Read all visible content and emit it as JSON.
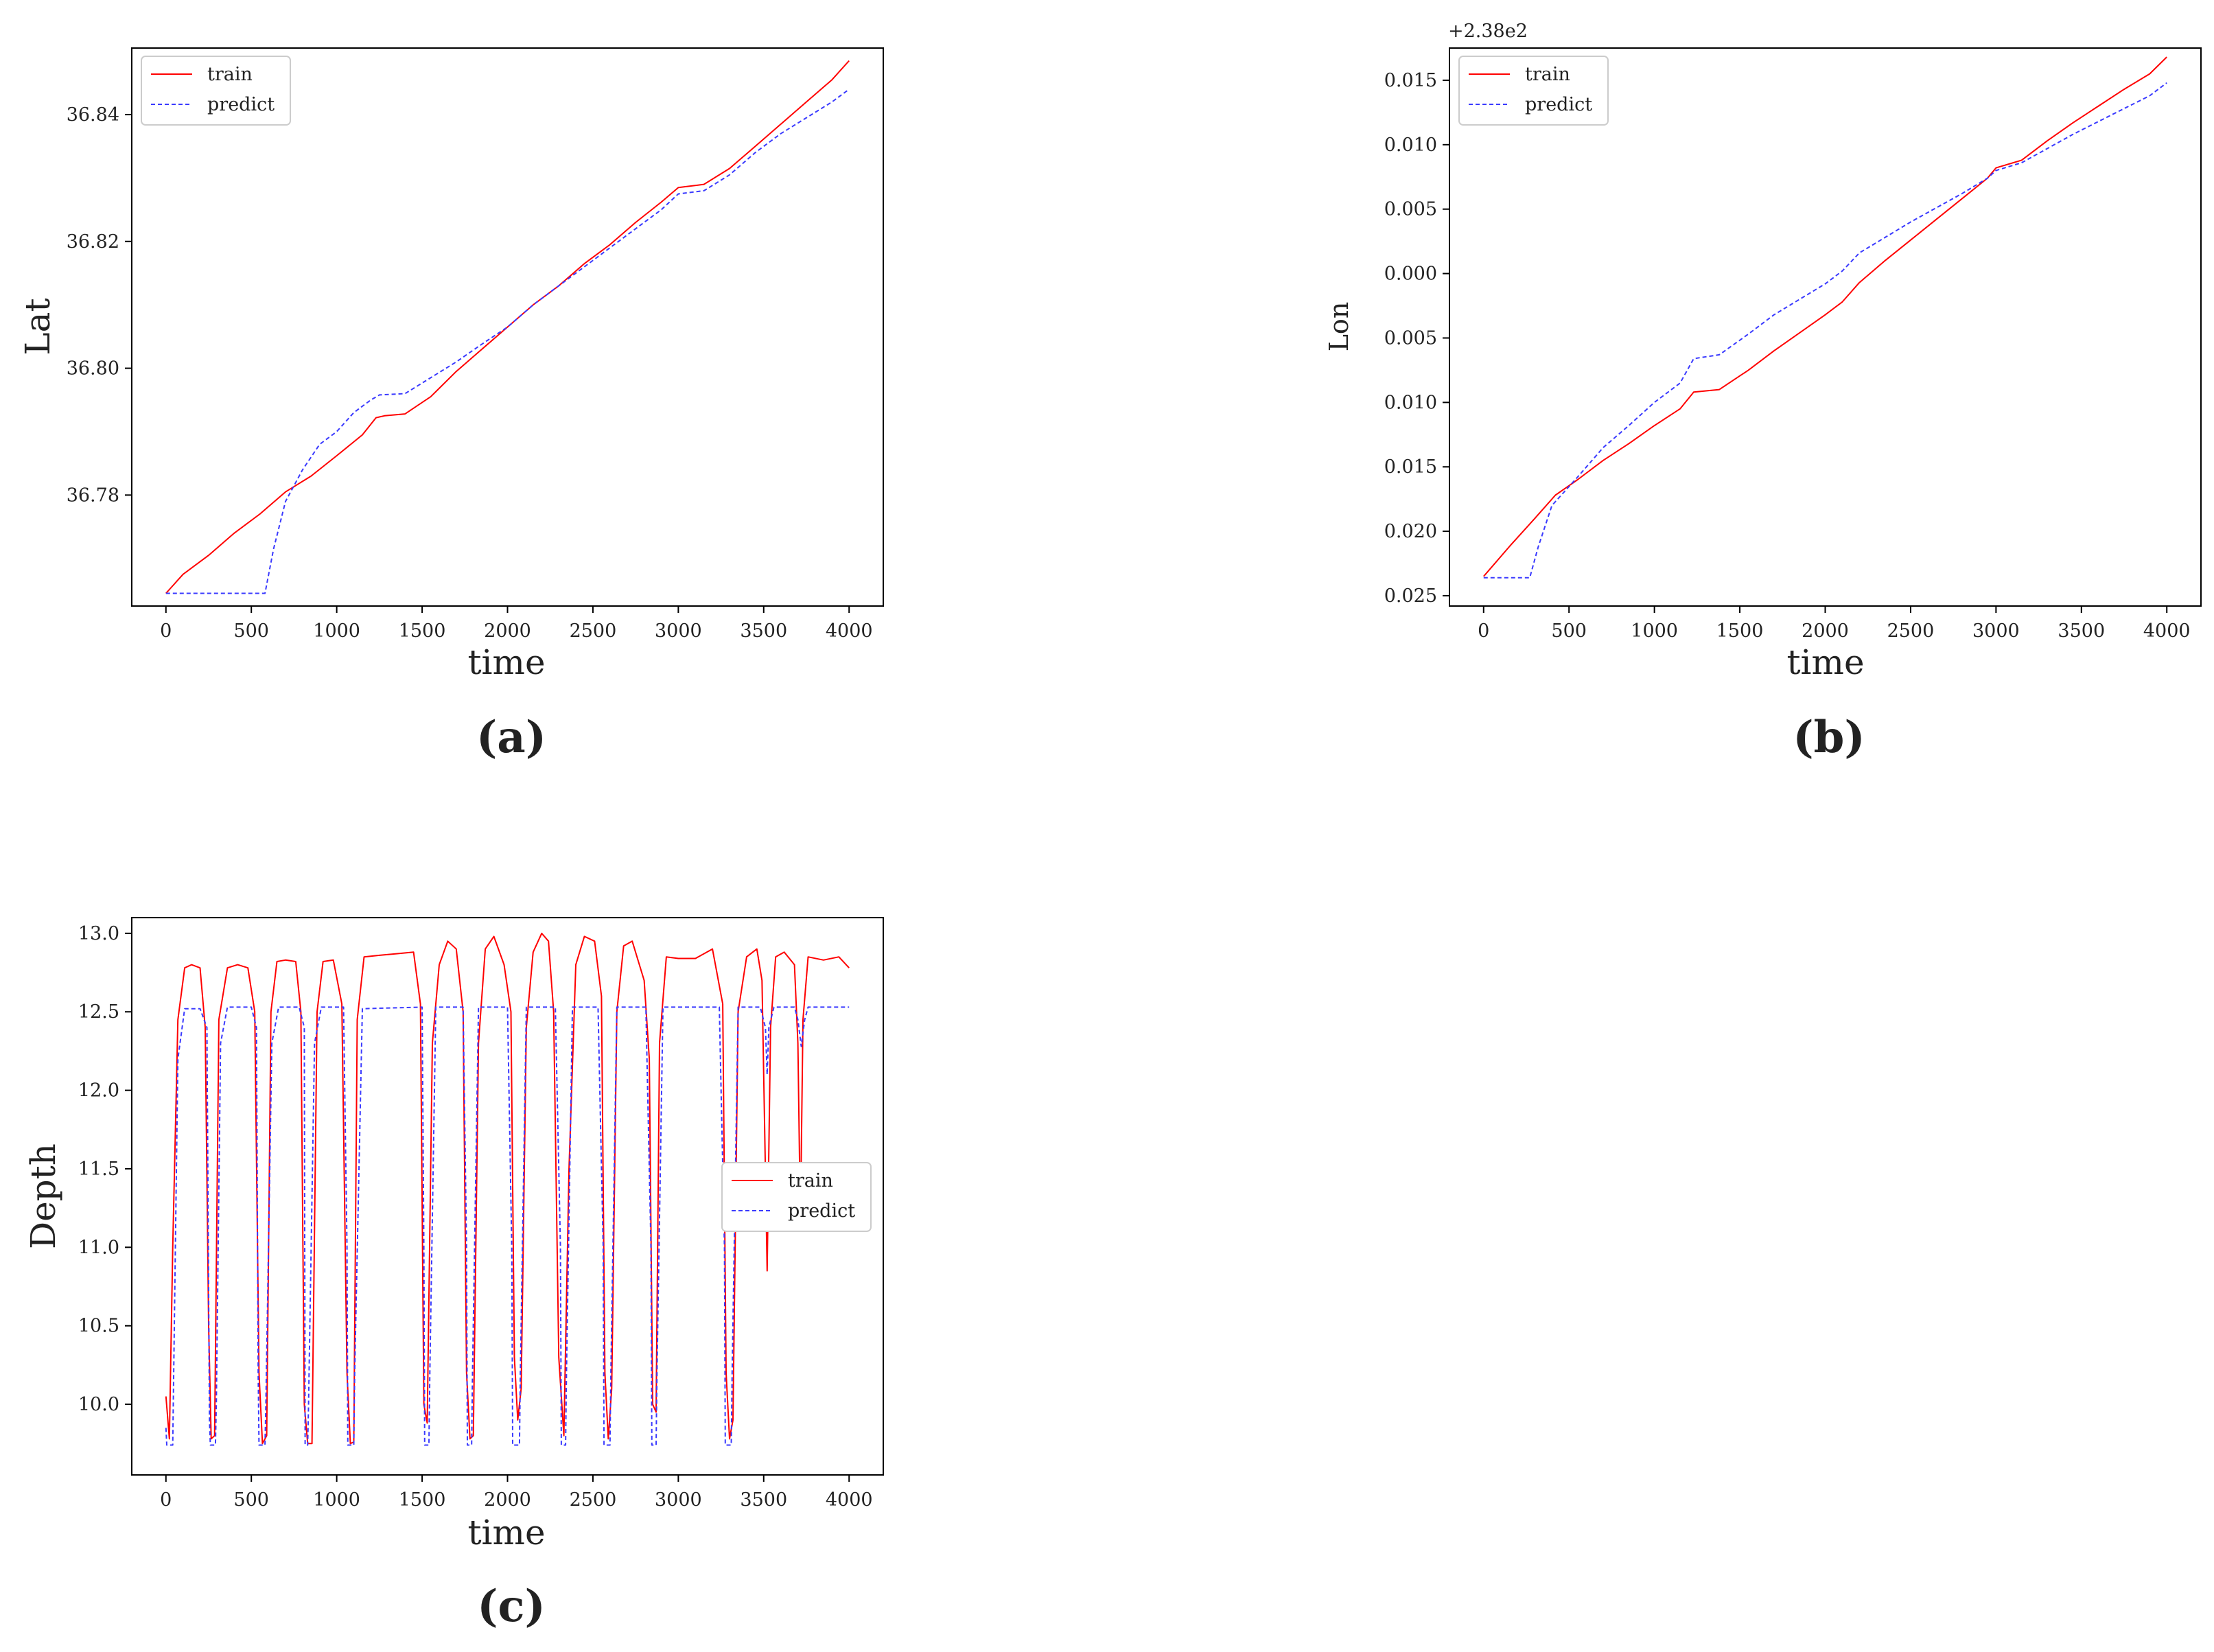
{
  "chart_data": [
    {
      "type": "line",
      "caption": "(a)",
      "xlabel": "time",
      "ylabel": "Lat",
      "xlim": [
        -200,
        4200
      ],
      "ylim": [
        36.7625,
        36.8505
      ],
      "xticks": [
        0,
        500,
        1000,
        1500,
        2000,
        2500,
        3000,
        3500,
        4000
      ],
      "xtick_labels": [
        "0",
        "500",
        "1000",
        "1500",
        "2000",
        "2500",
        "3000",
        "3500",
        "4000"
      ],
      "yticks": [
        36.78,
        36.8,
        36.82,
        36.84
      ],
      "ytick_labels": [
        "36.78",
        "36.80",
        "36.82",
        "36.84"
      ],
      "legend": [
        "train",
        "predict"
      ],
      "series": [
        {
          "name": "train",
          "color": "#ff0000",
          "dash": "solid",
          "x": [
            0,
            100,
            250,
            400,
            550,
            700,
            850,
            1000,
            1150,
            1230,
            1280,
            1400,
            1550,
            1700,
            1850,
            2000,
            2150,
            2300,
            2450,
            2600,
            2750,
            2900,
            3000,
            3150,
            3300,
            3450,
            3600,
            3750,
            3900,
            4000
          ],
          "y": [
            36.7645,
            36.7675,
            36.7705,
            36.774,
            36.777,
            36.7805,
            36.783,
            36.7862,
            36.7895,
            36.7922,
            36.7925,
            36.7928,
            36.7955,
            36.7995,
            36.803,
            36.8065,
            36.81,
            36.813,
            36.8165,
            36.8195,
            36.823,
            36.8262,
            36.8285,
            36.829,
            36.8315,
            36.835,
            36.8385,
            36.842,
            36.8455,
            36.8485
          ]
        },
        {
          "name": "predict",
          "color": "#3a3aff",
          "dash": "dashed",
          "x": [
            0,
            580,
            630,
            700,
            800,
            900,
            1000,
            1100,
            1200,
            1250,
            1400,
            1550,
            1700,
            1850,
            2000,
            2150,
            2300,
            2450,
            2600,
            2750,
            2900,
            3000,
            3150,
            3300,
            3450,
            3600,
            3750,
            3900,
            4000
          ],
          "y": [
            36.7645,
            36.7645,
            36.7715,
            36.779,
            36.784,
            36.788,
            36.79,
            36.793,
            36.795,
            36.7958,
            36.796,
            36.7985,
            36.801,
            36.8038,
            36.8065,
            36.81,
            36.813,
            36.816,
            36.819,
            36.822,
            36.825,
            36.8275,
            36.828,
            36.8305,
            36.834,
            36.837,
            36.8395,
            36.842,
            36.844
          ]
        }
      ]
    },
    {
      "type": "line",
      "caption": "(b)",
      "xlabel": "time",
      "ylabel": "Lon",
      "offset_label": "+2.38e2",
      "xlim": [
        -200,
        4200
      ],
      "ylim": [
        -0.0258,
        0.0175
      ],
      "xticks": [
        0,
        500,
        1000,
        1500,
        2000,
        2500,
        3000,
        3500,
        4000
      ],
      "xtick_labels": [
        "0",
        "500",
        "1000",
        "1500",
        "2000",
        "2500",
        "3000",
        "3500",
        "4000"
      ],
      "yticks": [
        0.015,
        0.01,
        0.005,
        0.0,
        -0.005,
        -0.01,
        -0.015,
        -0.02,
        -0.025
      ],
      "ytick_labels": [
        "0.015",
        "0.010",
        "0.005",
        "0.000",
        "0.005",
        "0.010",
        "0.015",
        "0.020",
        "0.025"
      ],
      "legend": [
        "train",
        "predict"
      ],
      "series": [
        {
          "name": "train",
          "color": "#ff0000",
          "dash": "solid",
          "x": [
            0,
            150,
            300,
            420,
            550,
            700,
            850,
            1000,
            1150,
            1230,
            1380,
            1550,
            1700,
            1850,
            2000,
            2100,
            2200,
            2350,
            2500,
            2650,
            2800,
            2950,
            3000,
            3150,
            3300,
            3450,
            3600,
            3750,
            3900,
            4000
          ],
          "y": [
            -0.0235,
            -0.0212,
            -0.019,
            -0.0172,
            -0.016,
            -0.0145,
            -0.0132,
            -0.0118,
            -0.0105,
            -0.0092,
            -0.009,
            -0.0075,
            -0.006,
            -0.0046,
            -0.0032,
            -0.0022,
            -0.0007,
            0.001,
            0.0026,
            0.0042,
            0.0058,
            0.0074,
            0.0082,
            0.0088,
            0.0103,
            0.0117,
            0.013,
            0.0143,
            0.0155,
            0.0168
          ]
        },
        {
          "name": "predict",
          "color": "#3a3aff",
          "dash": "dashed",
          "x": [
            0,
            270,
            320,
            400,
            550,
            700,
            850,
            1000,
            1150,
            1230,
            1380,
            1550,
            1700,
            1850,
            2000,
            2100,
            2200,
            2350,
            2500,
            2650,
            2800,
            2950,
            3000,
            3150,
            3300,
            3450,
            3600,
            3750,
            3900,
            4000
          ],
          "y": [
            -0.0236,
            -0.0236,
            -0.0212,
            -0.018,
            -0.0158,
            -0.0135,
            -0.0118,
            -0.01,
            -0.0085,
            -0.0066,
            -0.0063,
            -0.0047,
            -0.0032,
            -0.002,
            -0.0008,
            0.0002,
            0.0016,
            0.0028,
            0.004,
            0.0051,
            0.0062,
            0.0074,
            0.008,
            0.0086,
            0.0097,
            0.0108,
            0.0118,
            0.0128,
            0.0138,
            0.0148
          ]
        }
      ]
    },
    {
      "type": "line",
      "caption": "(c)",
      "xlabel": "time",
      "ylabel": "Depth",
      "xlim": [
        -200,
        4200
      ],
      "ylim": [
        9.55,
        13.1
      ],
      "xticks": [
        0,
        500,
        1000,
        1500,
        2000,
        2500,
        3000,
        3500,
        4000
      ],
      "xtick_labels": [
        "0",
        "500",
        "1000",
        "1500",
        "2000",
        "2500",
        "3000",
        "3500",
        "4000"
      ],
      "yticks": [
        10.0,
        10.5,
        11.0,
        11.5,
        12.0,
        12.5,
        13.0
      ],
      "ytick_labels": [
        "10.0",
        "10.5",
        "11.0",
        "11.5",
        "12.0",
        "12.5",
        "13.0"
      ],
      "legend": [
        "train",
        "predict"
      ],
      "series": [
        {
          "name": "train",
          "color": "#ff0000",
          "dash": "solid",
          "x": [
            0,
            20,
            40,
            70,
            110,
            150,
            200,
            230,
            250,
            265,
            285,
            310,
            360,
            420,
            480,
            520,
            545,
            565,
            590,
            615,
            650,
            700,
            760,
            790,
            810,
            830,
            855,
            885,
            920,
            980,
            1030,
            1060,
            1080,
            1100,
            1120,
            1160,
            1250,
            1350,
            1450,
            1490,
            1510,
            1530,
            1560,
            1600,
            1650,
            1700,
            1740,
            1760,
            1780,
            1800,
            1830,
            1870,
            1920,
            1980,
            2020,
            2040,
            2060,
            2080,
            2110,
            2150,
            2200,
            2240,
            2270,
            2300,
            2330,
            2360,
            2400,
            2450,
            2510,
            2550,
            2570,
            2590,
            2610,
            2640,
            2680,
            2730,
            2800,
            2830,
            2850,
            2870,
            2890,
            2930,
            3000,
            3100,
            3200,
            3260,
            3280,
            3300,
            3320,
            3350,
            3400,
            3460,
            3490,
            3505,
            3520,
            3540,
            3570,
            3620,
            3680,
            3700,
            3715,
            3730,
            3760,
            3850,
            3940,
            4000
          ],
          "y": [
            10.05,
            9.78,
            11.0,
            12.45,
            12.78,
            12.8,
            12.78,
            12.4,
            10.5,
            9.78,
            9.8,
            12.45,
            12.78,
            12.8,
            12.78,
            12.5,
            10.2,
            9.75,
            9.8,
            12.5,
            12.82,
            12.83,
            12.82,
            12.5,
            10.0,
            9.75,
            9.75,
            12.5,
            12.82,
            12.83,
            12.55,
            10.2,
            9.75,
            9.76,
            12.45,
            12.85,
            12.86,
            12.87,
            12.88,
            12.55,
            10.0,
            9.88,
            12.3,
            12.8,
            12.95,
            12.9,
            12.5,
            10.2,
            9.78,
            9.8,
            12.3,
            12.9,
            12.98,
            12.8,
            12.5,
            10.3,
            9.9,
            10.1,
            12.4,
            12.88,
            13.0,
            12.95,
            12.5,
            10.3,
            9.8,
            11.5,
            12.8,
            12.98,
            12.95,
            12.6,
            10.2,
            9.78,
            10.1,
            12.5,
            12.92,
            12.95,
            12.7,
            12.2,
            10.0,
            9.95,
            12.3,
            12.85,
            12.84,
            12.84,
            12.9,
            12.55,
            10.2,
            9.78,
            9.9,
            12.5,
            12.85,
            12.9,
            12.7,
            11.8,
            10.85,
            12.4,
            12.85,
            12.88,
            12.8,
            12.3,
            11.15,
            12.45,
            12.85,
            12.83,
            12.85,
            12.78
          ]
        },
        {
          "name": "predict",
          "color": "#3a3aff",
          "dash": "dashed",
          "x": [
            0,
            5,
            40,
            70,
            110,
            200,
            240,
            255,
            260,
            290,
            295,
            320,
            360,
            500,
            530,
            540,
            545,
            580,
            585,
            620,
            660,
            780,
            810,
            815,
            830,
            835,
            870,
            910,
            1040,
            1060,
            1065,
            1100,
            1105,
            1150,
            1500,
            1510,
            1515,
            1540,
            1545,
            1580,
            1740,
            1760,
            1765,
            1790,
            1795,
            1830,
            2000,
            2025,
            2030,
            2070,
            2075,
            2110,
            2280,
            2310,
            2315,
            2340,
            2345,
            2380,
            2530,
            2560,
            2565,
            2600,
            2605,
            2640,
            2810,
            2840,
            2845,
            2870,
            2875,
            2910,
            3240,
            3270,
            3275,
            3310,
            3315,
            3350,
            3480,
            3510,
            3520,
            3530,
            3560,
            3680,
            3700,
            3720,
            3740,
            3760,
            4000
          ],
          "y": [
            9.85,
            9.74,
            9.74,
            12.2,
            12.52,
            12.52,
            12.4,
            9.9,
            9.74,
            9.74,
            10.0,
            12.3,
            12.53,
            12.53,
            12.4,
            10.2,
            9.74,
            9.74,
            10.0,
            12.3,
            12.53,
            12.53,
            12.4,
            9.74,
            9.74,
            10.0,
            12.3,
            12.53,
            12.53,
            11.0,
            9.74,
            9.74,
            10.2,
            12.52,
            12.53,
            11.0,
            9.74,
            9.74,
            10.2,
            12.53,
            12.53,
            11.0,
            9.74,
            9.74,
            10.2,
            12.53,
            12.53,
            11.0,
            9.74,
            9.74,
            10.2,
            12.53,
            12.53,
            11.0,
            9.74,
            9.74,
            10.2,
            12.53,
            12.53,
            11.0,
            9.74,
            9.74,
            10.2,
            12.53,
            12.53,
            11.0,
            9.74,
            9.74,
            10.2,
            12.53,
            12.53,
            11.0,
            9.74,
            9.74,
            10.2,
            12.53,
            12.53,
            12.4,
            12.1,
            12.4,
            12.53,
            12.53,
            12.45,
            12.28,
            12.45,
            12.53,
            12.53
          ]
        }
      ]
    }
  ]
}
